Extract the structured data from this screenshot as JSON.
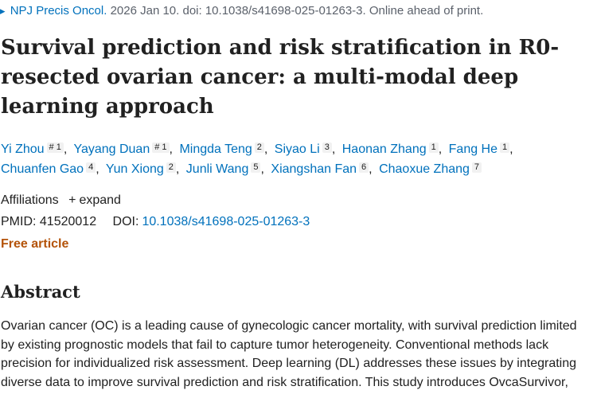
{
  "citation": {
    "journal": "NPJ Precis Oncol.",
    "details": "2026 Jan 10. doi: 10.1038/s41698-025-01263-3. Online ahead of print."
  },
  "title": {
    "line1": "Survival prediction and risk stratification in R0-",
    "line2": "resected ovarian cancer: a multi-modal deep",
    "line3": "learning approach"
  },
  "authors": [
    {
      "name": "Yi Zhou",
      "sup": "# 1"
    },
    {
      "name": "Yayang Duan",
      "sup": "# 1"
    },
    {
      "name": "Mingda Teng",
      "sup": "2"
    },
    {
      "name": "Siyao Li",
      "sup": "3"
    },
    {
      "name": "Haonan Zhang",
      "sup": "1"
    },
    {
      "name": "Fang He",
      "sup": "1"
    },
    {
      "name": "Chuanfen Gao",
      "sup": "4"
    },
    {
      "name": "Yun Xiong",
      "sup": "2"
    },
    {
      "name": "Junli Wang",
      "sup": "5"
    },
    {
      "name": "Xiangshan Fan",
      "sup": "6"
    },
    {
      "name": "Chaoxue Zhang",
      "sup": "7"
    }
  ],
  "affiliations": {
    "label": "Affiliations",
    "expand_label": "expand"
  },
  "identifiers": {
    "pmid_label": "PMID:",
    "pmid": "41520012",
    "doi_label": "DOI:",
    "doi": "10.1038/s41698-025-01263-3"
  },
  "free_article": "Free article",
  "abstract": {
    "heading": "Abstract",
    "lines": [
      "Ovarian cancer (OC) is a leading cause of gynecologic cancer mortality, with survival prediction limited",
      "by existing prognostic models that fail to capture tumor heterogeneity. Conventional methods lack",
      "precision for individualized risk assessment. Deep learning (DL) addresses these issues by integrating",
      "diverse data to improve survival prediction and risk stratification. This study introduces OvcaSurvivor,"
    ]
  }
}
